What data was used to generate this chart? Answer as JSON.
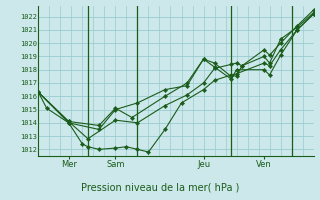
{
  "title": "Pression niveau de la mer( hPa )",
  "background_color": "#cce8ea",
  "grid_color": "#99ccd0",
  "line_color": "#1a5c1a",
  "xlim": [
    0,
    50
  ],
  "ylim": [
    1011.5,
    1022.8
  ],
  "yticks": [
    1012,
    1013,
    1014,
    1015,
    1016,
    1017,
    1018,
    1019,
    1020,
    1021,
    1022
  ],
  "day_ticks": [
    {
      "x": 5.5,
      "label": "Mer"
    },
    {
      "x": 14,
      "label": "Sam"
    },
    {
      "x": 30,
      "label": "Jeu"
    },
    {
      "x": 41,
      "label": "Ven"
    }
  ],
  "day_lines": [
    9,
    18,
    35,
    46
  ],
  "series": [
    [
      0,
      1016.3,
      1.5,
      1015.1,
      5.5,
      1014.0,
      8,
      1012.4,
      9,
      1012.2,
      11,
      1012.0,
      14,
      1012.1,
      16,
      1012.2,
      18,
      1012.0,
      20,
      1011.8,
      23,
      1013.5,
      26,
      1015.5,
      30,
      1016.5,
      32,
      1017.2,
      35,
      1017.6,
      36,
      1017.5,
      37,
      1018.3,
      41,
      1019.5,
      42,
      1019.1,
      44,
      1020.0,
      47,
      1021.3,
      50,
      1022.5
    ],
    [
      0,
      1016.3,
      5.5,
      1014.1,
      9,
      1012.8,
      14,
      1014.2,
      18,
      1014.0,
      23,
      1015.3,
      27,
      1016.1,
      30,
      1017.0,
      32,
      1018.1,
      35,
      1018.4,
      36,
      1018.5,
      37,
      1018.3,
      41,
      1019.0,
      42,
      1018.5,
      44,
      1020.3,
      47,
      1021.2,
      50,
      1022.3
    ],
    [
      0,
      1016.3,
      5.5,
      1014.0,
      11,
      1013.5,
      14,
      1015.0,
      18,
      1015.5,
      23,
      1016.5,
      27,
      1016.8,
      30,
      1018.8,
      32,
      1018.2,
      35,
      1017.3,
      36,
      1018.0,
      41,
      1018.0,
      42,
      1017.6,
      44,
      1019.1,
      47,
      1021.0,
      50,
      1022.2
    ],
    [
      0,
      1016.3,
      5.5,
      1014.1,
      11,
      1013.8,
      14,
      1015.1,
      17,
      1014.4,
      23,
      1016.0,
      27,
      1017.0,
      30,
      1018.8,
      32,
      1018.5,
      35,
      1017.5,
      36,
      1017.7,
      41,
      1018.5,
      42,
      1018.3,
      44,
      1019.5,
      47,
      1021.0,
      50,
      1022.2
    ]
  ]
}
